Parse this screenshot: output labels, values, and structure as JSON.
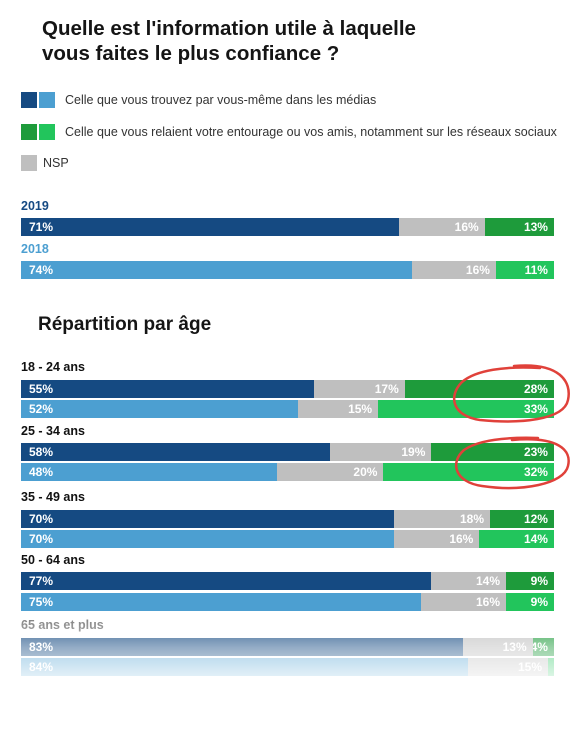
{
  "title_line1": "Quelle est l'information utile à laquelle",
  "title_line2": "vous faites le plus confiance ?",
  "legend": {
    "media": "Celle que vous trouvez par vous-même dans les médias",
    "entourage": "Celle que vous relaient votre entourage ou vos amis, notamment sur les réseaux sociaux",
    "nsp": "NSP"
  },
  "section_title": "Répartition par âge",
  "colors": {
    "media_dark": "#154a82",
    "media_light": "#4c9fd1",
    "nsp": "#bfbfbf",
    "entourage_dark": "#1e9b3b",
    "entourage_light": "#22c55c",
    "year_2019": "#164a83",
    "year_2018": "#4c9fd1",
    "annotation": "#e0413a"
  },
  "chart_data": {
    "type": "bar",
    "stacked": true,
    "orientation": "horizontal",
    "unit": "%",
    "segments": [
      "media",
      "nsp",
      "entourage"
    ],
    "overall": [
      {
        "label": "2019",
        "values": [
          71,
          16,
          13
        ]
      },
      {
        "label": "2018",
        "values": [
          74,
          16,
          11
        ]
      }
    ],
    "by_age": [
      {
        "label": "18 - 24 ans",
        "v2019": [
          55,
          17,
          28
        ],
        "v2018": [
          52,
          15,
          33
        ]
      },
      {
        "label": "25 - 34 ans",
        "v2019": [
          58,
          19,
          23
        ],
        "v2018": [
          48,
          20,
          32
        ]
      },
      {
        "label": "35 - 49 ans",
        "v2019": [
          70,
          18,
          12
        ],
        "v2018": [
          70,
          16,
          14
        ]
      },
      {
        "label": "50 - 64 ans",
        "v2019": [
          77,
          14,
          9
        ],
        "v2018": [
          75,
          16,
          9
        ]
      },
      {
        "label": "65 ans et plus",
        "v2019": [
          83,
          13,
          4
        ],
        "v2018": [
          84,
          15,
          1
        ]
      }
    ]
  }
}
